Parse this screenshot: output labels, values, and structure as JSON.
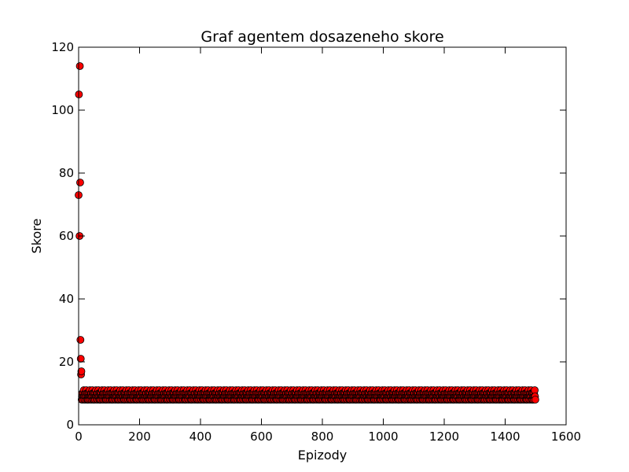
{
  "chart_data": {
    "type": "scatter",
    "title": "Graf agentem dosazeneho skore",
    "xlabel": "Epizody",
    "ylabel": "Skore",
    "xlim": [
      0,
      1600
    ],
    "ylim": [
      0,
      120
    ],
    "xticks": [
      0,
      200,
      400,
      600,
      800,
      1000,
      1200,
      1400,
      1600
    ],
    "yticks": [
      0,
      20,
      40,
      60,
      80,
      100,
      120
    ],
    "grid": false,
    "legend": "none",
    "marker_color": "#ff0000",
    "marker_edge": "#000000",
    "outliers": [
      {
        "x": 0,
        "y": 73
      },
      {
        "x": 1,
        "y": 105
      },
      {
        "x": 3,
        "y": 60
      },
      {
        "x": 4,
        "y": 114
      },
      {
        "x": 5,
        "y": 77
      },
      {
        "x": 6,
        "y": 27
      },
      {
        "x": 7,
        "y": 21
      },
      {
        "x": 8,
        "y": 16
      },
      {
        "x": 9,
        "y": 17
      }
    ],
    "bulk": {
      "x_range": [
        10,
        1499
      ],
      "values_cycle": [
        8,
        9,
        10,
        9,
        8,
        10,
        9,
        11,
        9,
        8,
        10,
        9,
        10,
        8,
        9,
        11,
        10,
        9,
        8,
        10
      ]
    }
  }
}
